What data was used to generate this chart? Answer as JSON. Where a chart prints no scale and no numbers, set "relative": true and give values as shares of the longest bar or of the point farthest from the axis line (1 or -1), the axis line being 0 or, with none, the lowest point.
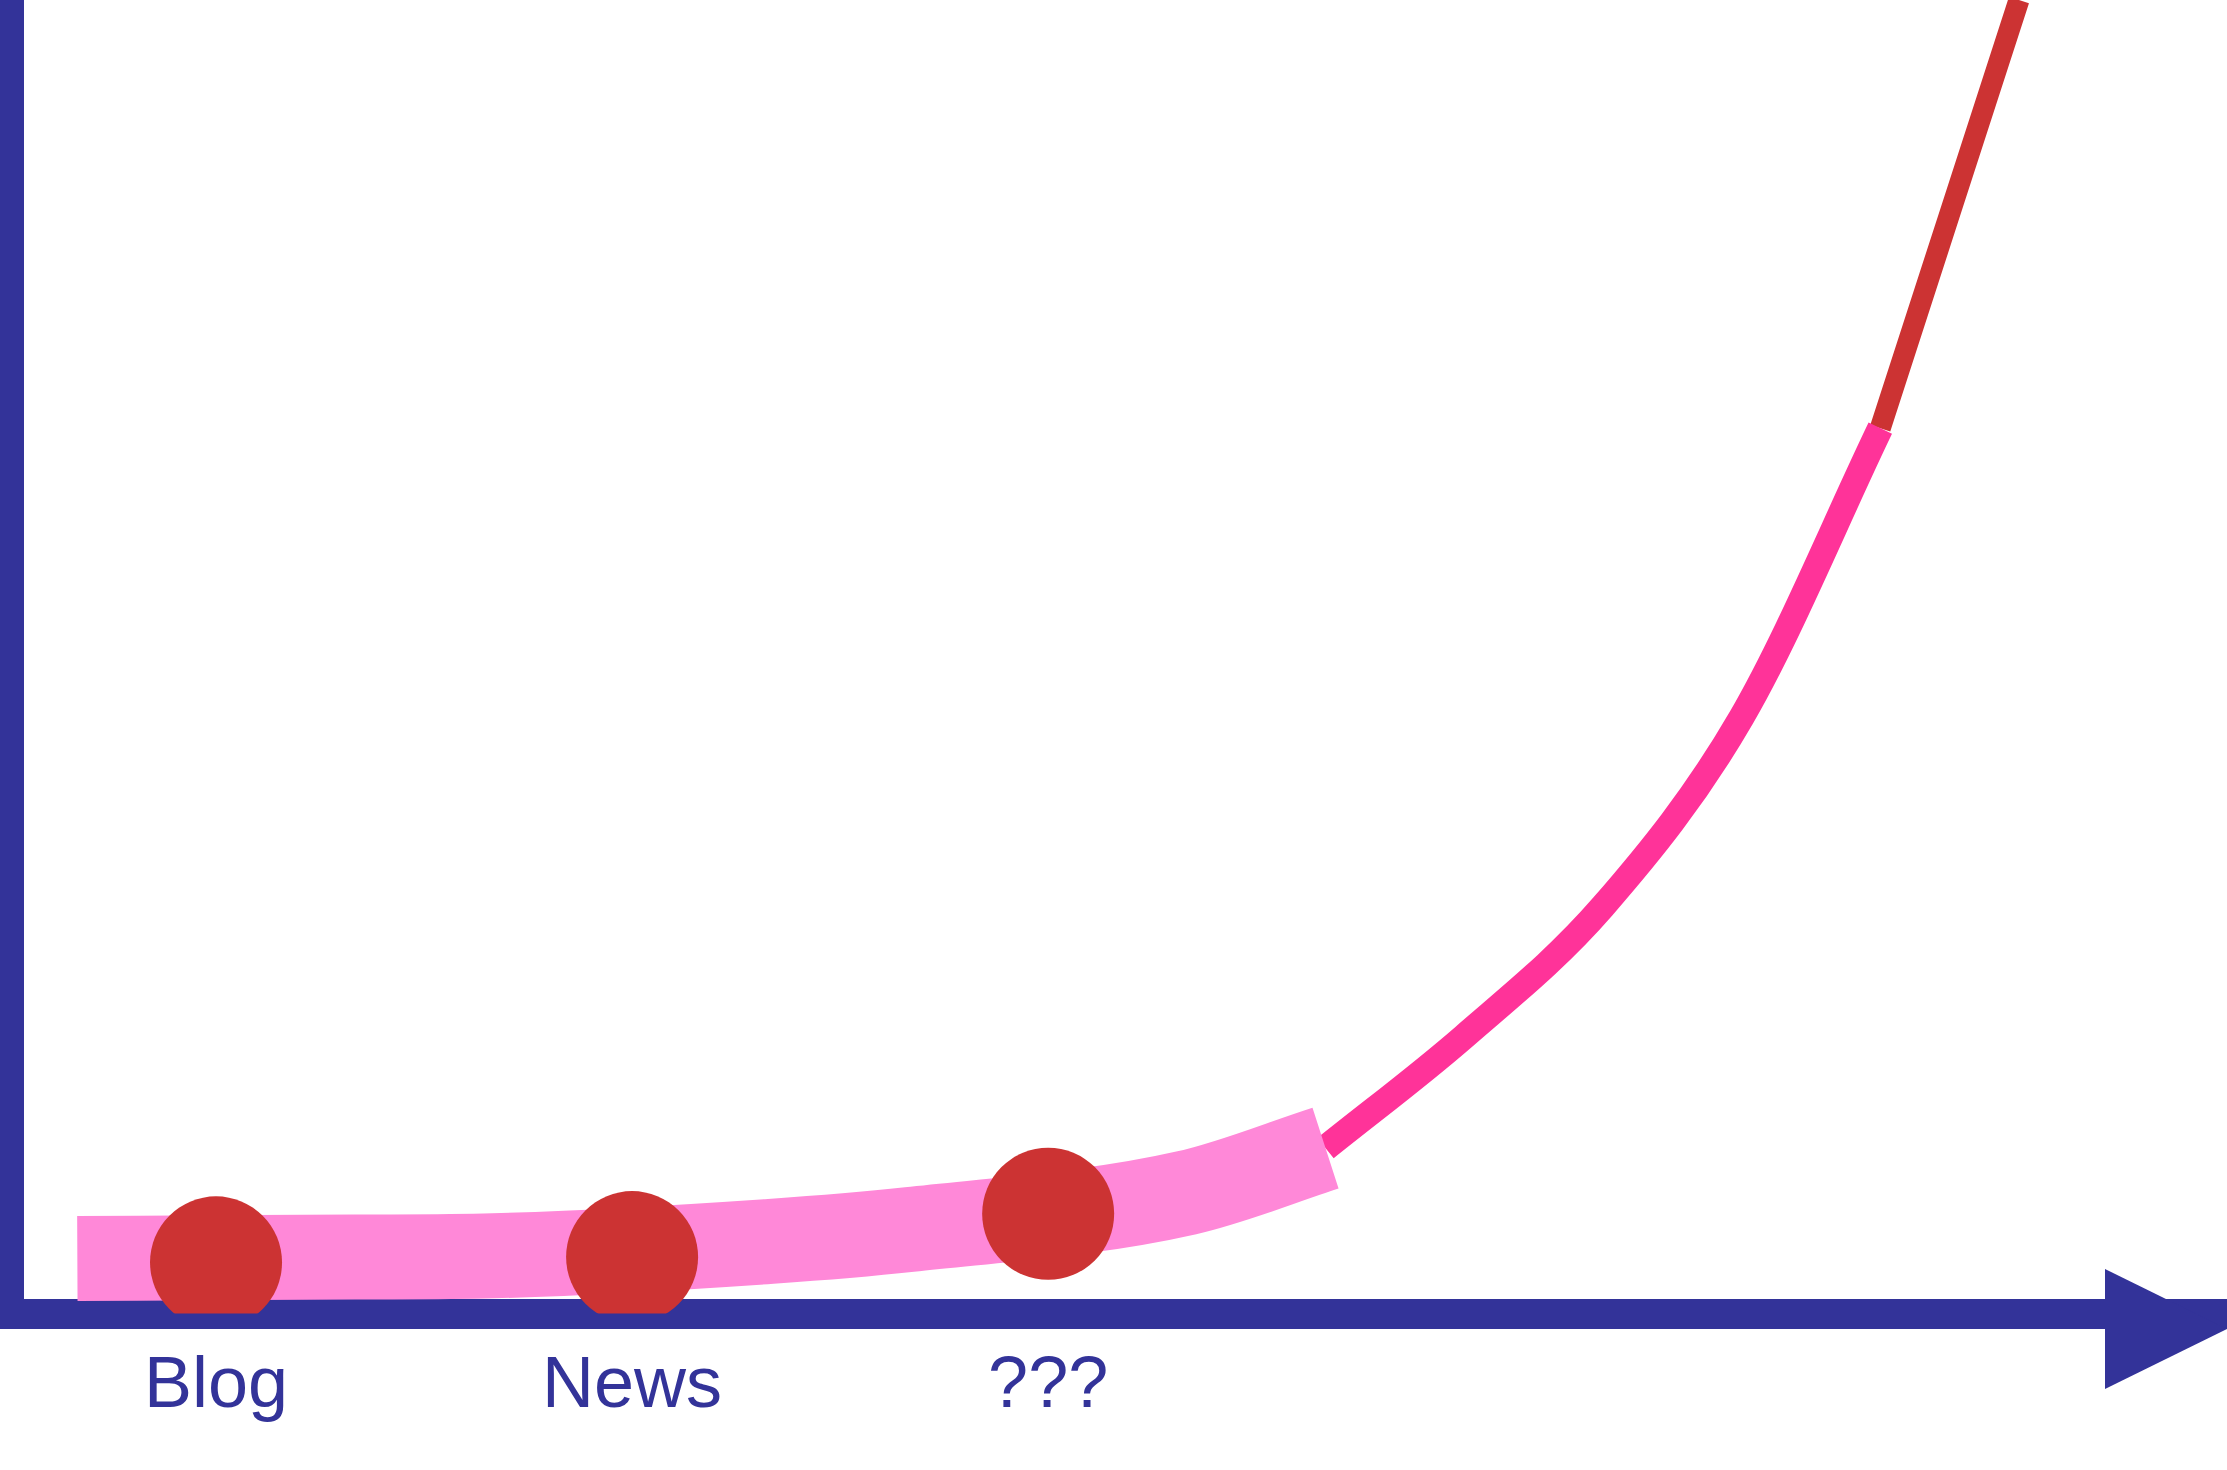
{
  "chart_data": {
    "type": "line",
    "relative": true,
    "categories": [
      null,
      "Blog",
      null,
      null,
      "News",
      null,
      null,
      "???",
      null,
      null,
      null,
      null,
      null,
      null,
      null,
      null
    ],
    "series": [
      {
        "type": "line",
        "color": "#ff88d8",
        "marker": "none",
        "values": [
          0.042,
          null,
          0.043,
          0.044,
          null,
          0.055,
          0.064,
          null,
          0.092,
          0.126,
          null,
          null,
          null,
          null,
          null,
          null
        ]
      },
      {
        "type": "line",
        "color": "#ff3399",
        "marker": "none",
        "values": [
          null,
          null,
          null,
          null,
          null,
          null,
          null,
          null,
          null,
          0.126,
          0.211,
          0.31,
          0.454,
          0.674,
          null,
          null
        ]
      },
      {
        "type": "line",
        "color": "#cc3333",
        "marker": "none",
        "values": [
          null,
          null,
          null,
          null,
          null,
          null,
          null,
          null,
          null,
          null,
          null,
          null,
          null,
          0.674,
          1.0,
          null
        ]
      },
      {
        "type": "scatter",
        "color": "#cc3333",
        "marker": "circle",
        "values": [
          null,
          0.039,
          null,
          null,
          0.043,
          null,
          null,
          0.076,
          null,
          null,
          null,
          null,
          null,
          null,
          null,
          null
        ]
      }
    ]
  }
}
